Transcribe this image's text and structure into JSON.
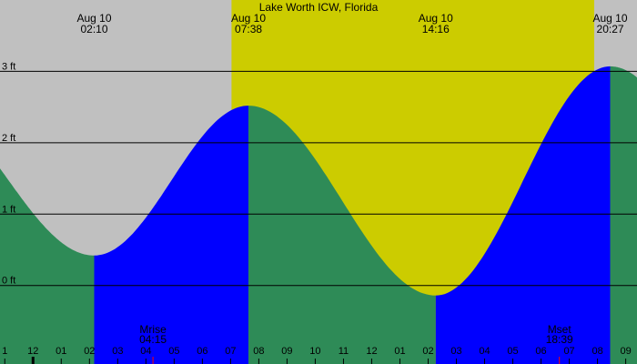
{
  "chart_data": {
    "type": "area",
    "title": "Lake Worth ICW, Florida",
    "xlabel": "",
    "ylabel": "",
    "y_unit": "ft",
    "y_ticks": [
      {
        "value": 0,
        "label": "0 ft"
      },
      {
        "value": 1,
        "label": "1 ft"
      },
      {
        "value": 2,
        "label": "2 ft"
      },
      {
        "value": 3,
        "label": "3 ft"
      }
    ],
    "x_range_hours": [
      -1.17,
      21.4
    ],
    "y_range_ft": [
      -1.1,
      4.0
    ],
    "daylight": {
      "start": "07:02",
      "end": "19:53"
    },
    "extremes": [
      {
        "date": "Aug 10",
        "time": "02:10",
        "type": "low",
        "height_ft": 0.42
      },
      {
        "date": "Aug 10",
        "time": "07:38",
        "type": "high",
        "height_ft": 2.52
      },
      {
        "date": "Aug 10",
        "time": "14:16",
        "type": "low",
        "height_ft": -0.14
      },
      {
        "date": "Aug 10",
        "time": "20:27",
        "type": "high",
        "height_ft": 3.07
      }
    ],
    "moon": [
      {
        "label": "Mrise",
        "time": "04:15"
      },
      {
        "label": "Mset",
        "time": "18:39"
      }
    ],
    "hour_labels": [
      "1",
      "12",
      "01",
      "02",
      "03",
      "04",
      "05",
      "06",
      "07",
      "08",
      "09",
      "10",
      "11",
      "12",
      "01",
      "02",
      "03",
      "04",
      "05",
      "06",
      "07",
      "08",
      "09"
    ],
    "colors": {
      "night": "#c0c0c0",
      "day": "#cccc00",
      "rising": "#0000ff",
      "falling": "#2e8b57",
      "moon_tick": "#ff0000"
    }
  }
}
